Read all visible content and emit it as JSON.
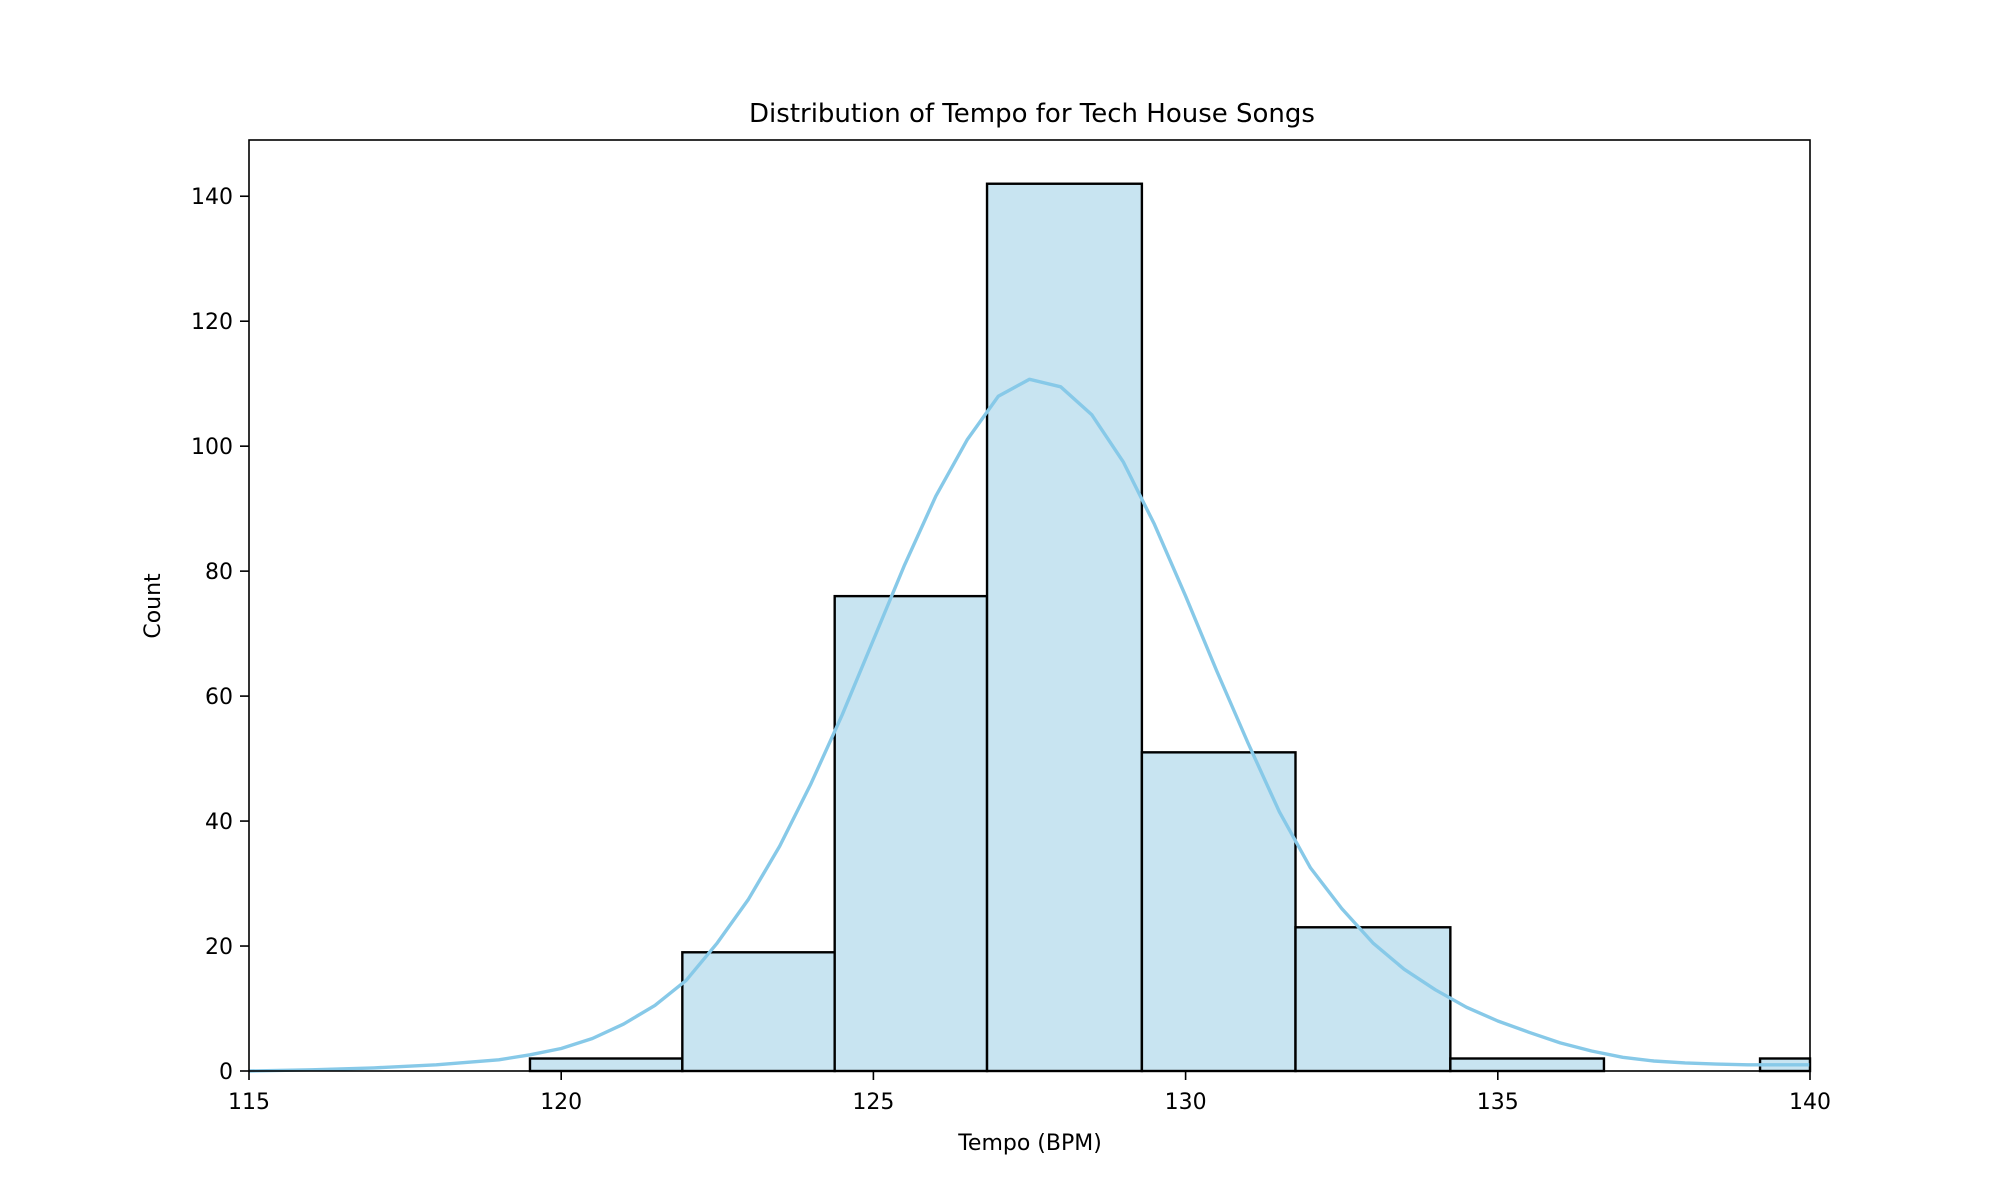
{
  "chart_data": {
    "type": "bar",
    "title": "Distribution of Tempo for Tech House Songs",
    "xlabel": "Tempo (BPM)",
    "ylabel": "Count",
    "xlim": [
      115,
      140
    ],
    "ylim": [
      0,
      149
    ],
    "xticks": [
      115,
      120,
      125,
      130,
      135,
      140
    ],
    "yticks": [
      0,
      20,
      40,
      60,
      80,
      100,
      120,
      140
    ],
    "bins": [
      {
        "x0": 119.5,
        "x1": 121.94,
        "count": 2
      },
      {
        "x0": 121.94,
        "x1": 124.38,
        "count": 19
      },
      {
        "x0": 124.38,
        "x1": 126.82,
        "count": 76
      },
      {
        "x0": 126.82,
        "x1": 129.3,
        "count": 142
      },
      {
        "x0": 129.3,
        "x1": 131.76,
        "count": 51
      },
      {
        "x0": 131.76,
        "x1": 134.24,
        "count": 23
      },
      {
        "x0": 134.24,
        "x1": 136.7,
        "count": 2
      },
      {
        "x0": 139.2,
        "x1": 141.6,
        "count": 2
      }
    ],
    "kde": {
      "x": [
        115,
        116,
        117,
        118,
        119,
        119.5,
        120,
        120.5,
        121,
        121.5,
        122,
        122.5,
        123,
        123.5,
        124,
        124.5,
        125,
        125.5,
        126,
        126.5,
        127,
        127.5,
        128,
        128.5,
        129,
        129.5,
        130,
        130.5,
        131,
        131.5,
        132,
        132.5,
        133,
        133.5,
        134,
        134.5,
        135,
        135.5,
        136,
        136.5,
        137,
        137.5,
        138,
        138.5,
        139,
        139.5,
        140
      ],
      "y": [
        0,
        0.2,
        0.5,
        1.0,
        1.8,
        2.6,
        3.6,
        5.2,
        7.5,
        10.5,
        14.5,
        20.5,
        27.5,
        36,
        46,
        57,
        69,
        81,
        92,
        101,
        108,
        110.7,
        109.5,
        105,
        97.5,
        87.5,
        76,
        64,
        52.5,
        41.5,
        32.5,
        26,
        20.5,
        16.3,
        13,
        10.2,
        8.0,
        6.2,
        4.5,
        3.2,
        2.2,
        1.6,
        1.3,
        1.1,
        1.0,
        1.0,
        1.0
      ]
    },
    "colors": {
      "bar_fill": "#c8e4f1",
      "bar_edge": "#000000",
      "kde_line": "#87c9e8"
    },
    "grid": false,
    "legend": "none"
  }
}
